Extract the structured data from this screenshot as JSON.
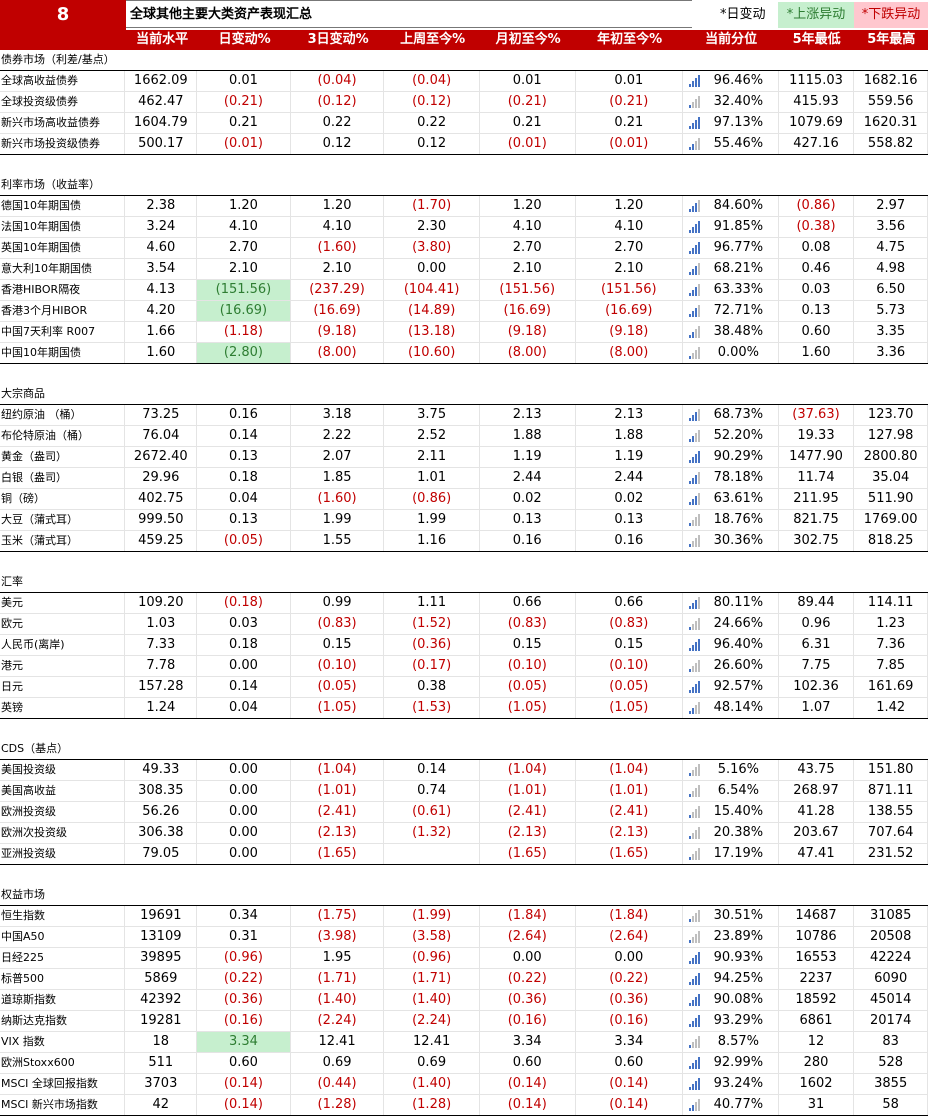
{
  "header": {
    "number": "8",
    "title": "全球其他主要大类资产表现汇总",
    "legend_day": "*日变动",
    "legend_up": "*上涨异动",
    "legend_down": "*下跌异动"
  },
  "columns": [
    "",
    "当前水平",
    "日变动%",
    "3日变动%",
    "上周至今%",
    "月初至今%",
    "年初至今%",
    "当前分位",
    "5年最低",
    "5年最高"
  ],
  "colors": {
    "brand_red": "#c00000",
    "up_green_bg": "#c6efce",
    "down_red_bg": "#ffc7ce",
    "signal_blue": "#4472c4"
  },
  "sections": [
    {
      "title": "债券市场（利差/基点）",
      "rows": [
        {
          "name": "全球高收益债券",
          "val": "1662.09",
          "d": "0.01",
          "d3": "(0.04)",
          "w": "(0.04)",
          "m": "0.01",
          "y": "0.01",
          "pct": "96.46%",
          "lo": "1115.03",
          "hi": "1682.16"
        },
        {
          "name": "全球投资级债券",
          "val": "462.47",
          "d": "(0.21)",
          "d3": "(0.12)",
          "w": "(0.12)",
          "m": "(0.21)",
          "y": "(0.21)",
          "pct": "32.40%",
          "lo": "415.93",
          "hi": "559.56"
        },
        {
          "name": "新兴市场高收益债券",
          "val": "1604.79",
          "d": "0.21",
          "d3": "0.22",
          "w": "0.22",
          "m": "0.21",
          "y": "0.21",
          "pct": "97.13%",
          "lo": "1079.69",
          "hi": "1620.31"
        },
        {
          "name": "新兴市场投资级债券",
          "val": "500.17",
          "d": "(0.01)",
          "d3": "0.12",
          "w": "0.12",
          "m": "(0.01)",
          "y": "(0.01)",
          "pct": "55.46%",
          "lo": "427.16",
          "hi": "558.82"
        }
      ]
    },
    {
      "title": "利率市场（收益率）",
      "rows": [
        {
          "name": "德国10年期国债",
          "val": "2.38",
          "d": "1.20",
          "d3": "1.20",
          "w": "(1.70)",
          "m": "1.20",
          "y": "1.20",
          "pct": "84.60%",
          "lo": "(0.86)",
          "hi": "2.97"
        },
        {
          "name": "法国10年期国债",
          "val": "3.24",
          "d": "4.10",
          "d3": "4.10",
          "w": "2.30",
          "m": "4.10",
          "y": "4.10",
          "pct": "91.85%",
          "lo": "(0.38)",
          "hi": "3.56"
        },
        {
          "name": "英国10年期国债",
          "val": "4.60",
          "d": "2.70",
          "d3": "(1.60)",
          "w": "(3.80)",
          "m": "2.70",
          "y": "2.70",
          "pct": "96.77%",
          "lo": "0.08",
          "hi": "4.75"
        },
        {
          "name": "意大利10年期国债",
          "val": "3.54",
          "d": "2.10",
          "d3": "2.10",
          "w": "0.00",
          "m": "2.10",
          "y": "2.10",
          "pct": "68.21%",
          "lo": "0.46",
          "hi": "4.98"
        },
        {
          "name": "香港HIBOR隔夜",
          "val": "4.13",
          "d": "(151.56)",
          "d3": "(237.29)",
          "w": "(104.41)",
          "m": "(151.56)",
          "y": "(151.56)",
          "pct": "63.33%",
          "lo": "0.03",
          "hi": "6.50",
          "hl": "up"
        },
        {
          "name": "香港3个月HIBOR",
          "val": "4.20",
          "d": "(16.69)",
          "d3": "(16.69)",
          "w": "(14.89)",
          "m": "(16.69)",
          "y": "(16.69)",
          "pct": "72.71%",
          "lo": "0.13",
          "hi": "5.73",
          "hl": "up"
        },
        {
          "name": "中国7天利率 R007",
          "val": "1.66",
          "d": "(1.18)",
          "d3": "(9.18)",
          "w": "(13.18)",
          "m": "(9.18)",
          "y": "(9.18)",
          "pct": "38.48%",
          "lo": "0.60",
          "hi": "3.35"
        },
        {
          "name": "中国10年期国债",
          "val": "1.60",
          "d": "(2.80)",
          "d3": "(8.00)",
          "w": "(10.60)",
          "m": "(8.00)",
          "y": "(8.00)",
          "pct": "0.00%",
          "lo": "1.60",
          "hi": "3.36",
          "hl": "up"
        }
      ]
    },
    {
      "title": "大宗商品",
      "rows": [
        {
          "name": "纽约原油 （桶）",
          "val": "73.25",
          "d": "0.16",
          "d3": "3.18",
          "w": "3.75",
          "m": "2.13",
          "y": "2.13",
          "pct": "68.73%",
          "lo": "(37.63)",
          "hi": "123.70"
        },
        {
          "name": "布伦特原油（桶）",
          "val": "76.04",
          "d": "0.14",
          "d3": "2.22",
          "w": "2.52",
          "m": "1.88",
          "y": "1.88",
          "pct": "52.20%",
          "lo": "19.33",
          "hi": "127.98"
        },
        {
          "name": "黄金（盎司）",
          "val": "2672.40",
          "d": "0.13",
          "d3": "2.07",
          "w": "2.11",
          "m": "1.19",
          "y": "1.19",
          "pct": "90.29%",
          "lo": "1477.90",
          "hi": "2800.80"
        },
        {
          "name": "白银（盎司）",
          "val": "29.96",
          "d": "0.18",
          "d3": "1.85",
          "w": "1.01",
          "m": "2.44",
          "y": "2.44",
          "pct": "78.18%",
          "lo": "11.74",
          "hi": "35.04"
        },
        {
          "name": "铜（磅）",
          "val": "402.75",
          "d": "0.04",
          "d3": "(1.60)",
          "w": "(0.86)",
          "m": "0.02",
          "y": "0.02",
          "pct": "63.61%",
          "lo": "211.95",
          "hi": "511.90"
        },
        {
          "name": "大豆（蒲式耳）",
          "val": "999.50",
          "d": "0.13",
          "d3": "1.99",
          "w": "1.99",
          "m": "0.13",
          "y": "0.13",
          "pct": "18.76%",
          "lo": "821.75",
          "hi": "1769.00"
        },
        {
          "name": "玉米（蒲式耳）",
          "val": "459.25",
          "d": "(0.05)",
          "d3": "1.55",
          "w": "1.16",
          "m": "0.16",
          "y": "0.16",
          "pct": "30.36%",
          "lo": "302.75",
          "hi": "818.25"
        }
      ]
    },
    {
      "title": "汇率",
      "rows": [
        {
          "name": "美元",
          "val": "109.20",
          "d": "(0.18)",
          "d3": "0.99",
          "w": "1.11",
          "m": "0.66",
          "y": "0.66",
          "pct": "80.11%",
          "lo": "89.44",
          "hi": "114.11"
        },
        {
          "name": "欧元",
          "val": "1.03",
          "d": "0.03",
          "d3": "(0.83)",
          "w": "(1.52)",
          "m": "(0.83)",
          "y": "(0.83)",
          "pct": "24.66%",
          "lo": "0.96",
          "hi": "1.23"
        },
        {
          "name": "人民币(离岸)",
          "val": "7.33",
          "d": "0.18",
          "d3": "0.15",
          "w": "(0.36)",
          "m": "0.15",
          "y": "0.15",
          "pct": "96.40%",
          "lo": "6.31",
          "hi": "7.36"
        },
        {
          "name": "港元",
          "val": "7.78",
          "d": "0.00",
          "d3": "(0.10)",
          "w": "(0.17)",
          "m": "(0.10)",
          "y": "(0.10)",
          "pct": "26.60%",
          "lo": "7.75",
          "hi": "7.85"
        },
        {
          "name": "日元",
          "val": "157.28",
          "d": "0.14",
          "d3": "(0.05)",
          "w": "0.38",
          "m": "(0.05)",
          "y": "(0.05)",
          "pct": "92.57%",
          "lo": "102.36",
          "hi": "161.69"
        },
        {
          "name": "英镑",
          "val": "1.24",
          "d": "0.04",
          "d3": "(1.05)",
          "w": "(1.53)",
          "m": "(1.05)",
          "y": "(1.05)",
          "pct": "48.14%",
          "lo": "1.07",
          "hi": "1.42"
        }
      ]
    },
    {
      "title": "CDS（基点）",
      "rows": [
        {
          "name": "美国投资级",
          "val": "49.33",
          "d": "0.00",
          "d3": "(1.04)",
          "w": "0.14",
          "m": "(1.04)",
          "y": "(1.04)",
          "pct": "5.16%",
          "lo": "43.75",
          "hi": "151.80"
        },
        {
          "name": "美国高收益",
          "val": "308.35",
          "d": "0.00",
          "d3": "(1.01)",
          "w": "0.74",
          "m": "(1.01)",
          "y": "(1.01)",
          "pct": "6.54%",
          "lo": "268.97",
          "hi": "871.11"
        },
        {
          "name": "欧洲投资级",
          "val": "56.26",
          "d": "0.00",
          "d3": "(2.41)",
          "w": "(0.61)",
          "m": "(2.41)",
          "y": "(2.41)",
          "pct": "15.40%",
          "lo": "41.28",
          "hi": "138.55"
        },
        {
          "name": "欧洲次投资级",
          "val": "306.38",
          "d": "0.00",
          "d3": "(2.13)",
          "w": "(1.32)",
          "m": "(2.13)",
          "y": "(2.13)",
          "pct": "20.38%",
          "lo": "203.67",
          "hi": "707.64"
        },
        {
          "name": "亚洲投资级",
          "val": "79.05",
          "d": "0.00",
          "d3": "(1.65)",
          "w": "",
          "m": "(1.65)",
          "y": "(1.65)",
          "pct": "17.19%",
          "lo": "47.41",
          "hi": "231.52"
        }
      ]
    },
    {
      "title": "权益市场",
      "rows": [
        {
          "name": "恒生指数",
          "val": "19691",
          "d": "0.34",
          "d3": "(1.75)",
          "w": "(1.99)",
          "m": "(1.84)",
          "y": "(1.84)",
          "pct": "30.51%",
          "lo": "14687",
          "hi": "31085"
        },
        {
          "name": "中国A50",
          "val": "13109",
          "d": "0.31",
          "d3": "(3.98)",
          "w": "(3.58)",
          "m": "(2.64)",
          "y": "(2.64)",
          "pct": "23.89%",
          "lo": "10786",
          "hi": "20508"
        },
        {
          "name": "日经225",
          "val": "39895",
          "d": "(0.96)",
          "d3": "1.95",
          "w": "(0.96)",
          "m": "0.00",
          "y": "0.00",
          "pct": "90.93%",
          "lo": "16553",
          "hi": "42224"
        },
        {
          "name": "标普500",
          "val": "5869",
          "d": "(0.22)",
          "d3": "(1.71)",
          "w": "(1.71)",
          "m": "(0.22)",
          "y": "(0.22)",
          "pct": "94.25%",
          "lo": "2237",
          "hi": "6090"
        },
        {
          "name": "道琼斯指数",
          "val": "42392",
          "d": "(0.36)",
          "d3": "(1.40)",
          "w": "(1.40)",
          "m": "(0.36)",
          "y": "(0.36)",
          "pct": "90.08%",
          "lo": "18592",
          "hi": "45014"
        },
        {
          "name": "纳斯达克指数",
          "val": "19281",
          "d": "(0.16)",
          "d3": "(2.24)",
          "w": "(2.24)",
          "m": "(0.16)",
          "y": "(0.16)",
          "pct": "93.29%",
          "lo": "6861",
          "hi": "20174"
        },
        {
          "name": "VIX 指数",
          "val": "18",
          "d": "3.34",
          "d3": "12.41",
          "w": "12.41",
          "m": "3.34",
          "y": "3.34",
          "pct": "8.57%",
          "lo": "12",
          "hi": "83",
          "hl": "up"
        },
        {
          "name": "欧洲Stoxx600",
          "val": "511",
          "d": "0.60",
          "d3": "0.69",
          "w": "0.69",
          "m": "0.60",
          "y": "0.60",
          "pct": "92.99%",
          "lo": "280",
          "hi": "528"
        },
        {
          "name": "MSCI 全球回报指数",
          "val": "3703",
          "d": "(0.14)",
          "d3": "(0.44)",
          "w": "(1.40)",
          "m": "(0.14)",
          "y": "(0.14)",
          "pct": "93.24%",
          "lo": "1602",
          "hi": "3855"
        },
        {
          "name": "MSCI 新兴市场指数",
          "val": "42",
          "d": "(0.14)",
          "d3": "(1.28)",
          "w": "(1.28)",
          "m": "(0.14)",
          "y": "(0.14)",
          "pct": "40.77%",
          "lo": "31",
          "hi": "58"
        }
      ]
    }
  ]
}
